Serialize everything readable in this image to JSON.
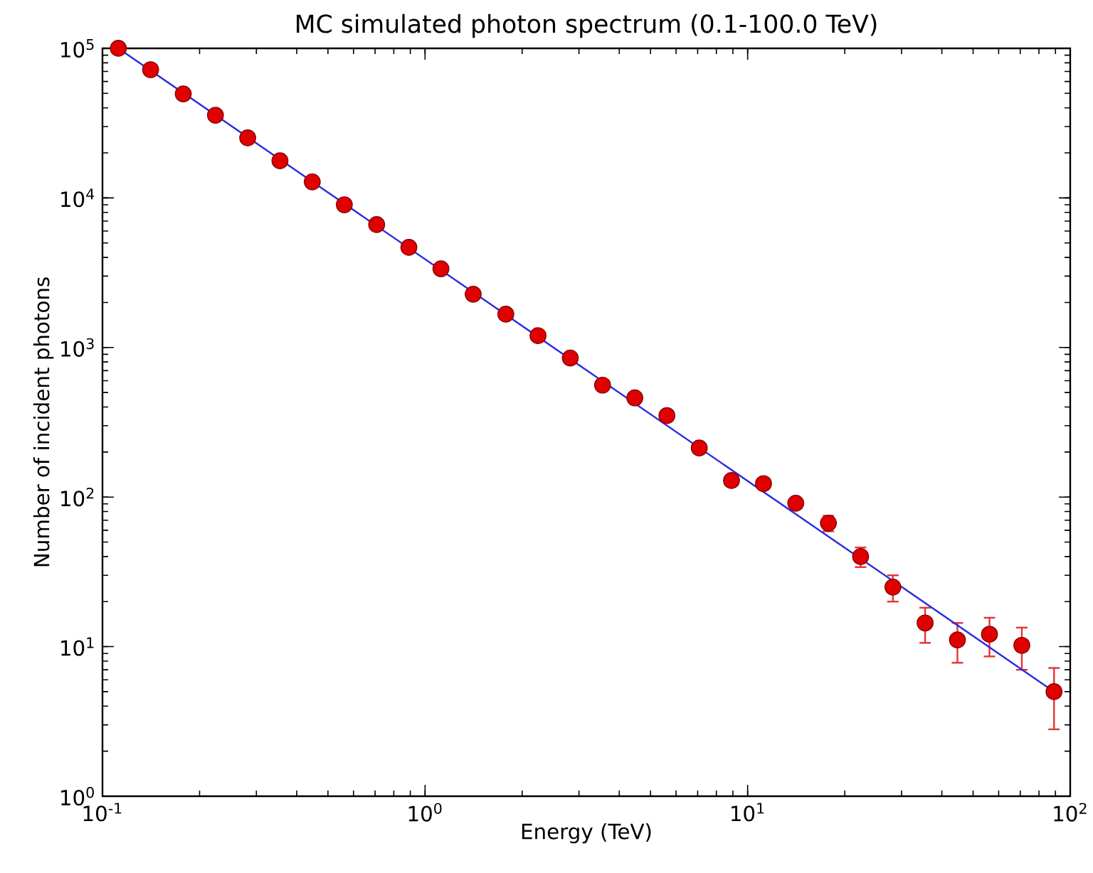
{
  "chart_data": {
    "type": "scatter",
    "title": "MC simulated photon spectrum (0.1-100.0 TeV)",
    "xlabel": "Energy (TeV)",
    "ylabel": "Number of incident photons",
    "log": "xy",
    "grid": false,
    "xlim": [
      0.1,
      100
    ],
    "ylim": [
      1,
      100000
    ],
    "xticks": [
      {
        "value": 0.1,
        "label": "10$^{-1}$"
      },
      {
        "value": 1,
        "label": "10$^{0}$"
      },
      {
        "value": 10,
        "label": "10$^{1}$"
      },
      {
        "value": 100,
        "label": "10$^{2}$"
      }
    ],
    "yticks": [
      {
        "value": 1,
        "label": "10$^{0}$"
      },
      {
        "value": 10,
        "label": "10$^{1}$"
      },
      {
        "value": 100,
        "label": "10$^{2}$"
      },
      {
        "value": 1000,
        "label": "10$^{3}$"
      },
      {
        "value": 10000,
        "label": "10$^{4}$"
      },
      {
        "value": 100000,
        "label": "10$^{5}$"
      }
    ],
    "series": [
      {
        "type": "line",
        "color": "#2a2ae0",
        "line_style": "solid",
        "marker": "none",
        "x": [
          0.112,
          89.1
        ],
        "values": [
          100000,
          5
        ]
      },
      {
        "type": "scatter",
        "marker": "circle",
        "color": "#e00000",
        "x": [
          0.112,
          0.141,
          0.178,
          0.224,
          0.282,
          0.355,
          0.447,
          0.562,
          0.708,
          0.891,
          1.12,
          1.41,
          1.78,
          2.24,
          2.82,
          3.55,
          4.47,
          5.62,
          7.08,
          8.91,
          11.2,
          14.1,
          17.8,
          22.4,
          28.2,
          35.5,
          44.7,
          56.2,
          70.8,
          89.1
        ],
        "values": [
          100000,
          72000,
          49600,
          35700,
          25200,
          17700,
          12800,
          9000,
          6630,
          4670,
          3360,
          2270,
          1670,
          1200,
          850,
          560,
          460,
          350,
          213,
          129,
          123,
          91,
          67,
          40,
          25,
          14.4,
          11.1,
          12.1,
          10.2,
          5
        ],
        "errors": [
          null,
          null,
          null,
          null,
          null,
          null,
          null,
          null,
          null,
          null,
          null,
          null,
          null,
          null,
          null,
          null,
          null,
          null,
          null,
          null,
          null,
          null,
          8,
          6,
          5,
          3.8,
          3.3,
          3.5,
          3.2,
          2.2
        ]
      }
    ]
  }
}
